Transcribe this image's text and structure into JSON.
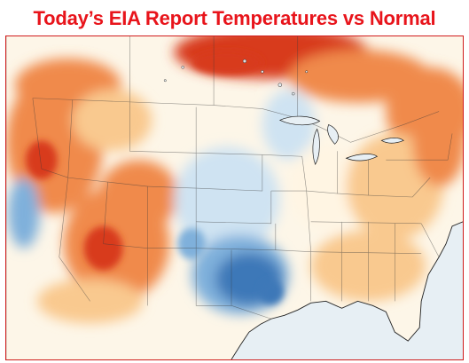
{
  "header": {
    "title": "Today’s EIA Report Temperatures vs Normal",
    "title_color": "#e8141b"
  },
  "map": {
    "frame_color": "#d01c1c",
    "ocean_color": "#e9f1f6",
    "land_base_color": "#fdf6e8",
    "anomaly_colors": {
      "much_above": "#d83a1f",
      "above": "#f08a4b",
      "slightly_above": "#f9c98f",
      "near_normal": "#fff5e3",
      "slightly_below": "#cfe3f2",
      "below": "#7fb0db",
      "much_below": "#3d78b8"
    },
    "regions": {
      "canada_north": "much above normal",
      "pacific_northwest": "above normal",
      "great_basin_rockies": "above normal",
      "california_coast": "below normal",
      "southern_plains_texas": "much below normal",
      "central_plains": "below normal",
      "midwest_great_lakes": "near normal",
      "southeast": "slightly above normal",
      "northeast": "slightly above normal",
      "gulf_of_mexico": "ocean"
    }
  }
}
